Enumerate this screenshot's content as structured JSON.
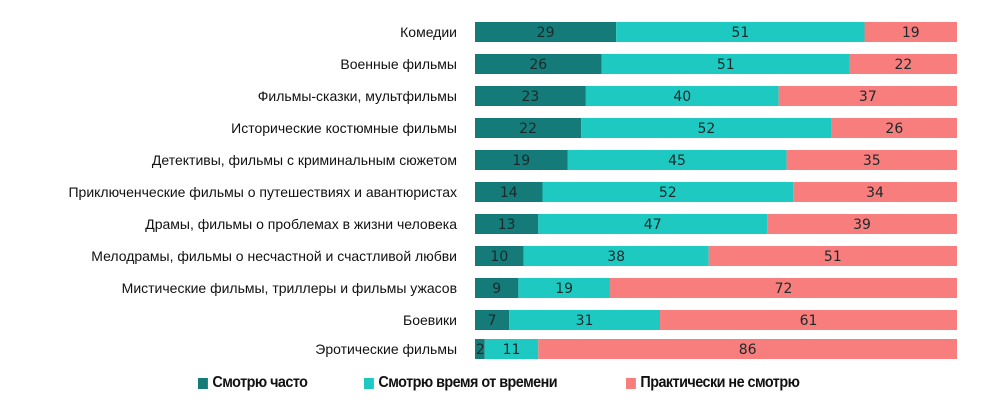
{
  "chart_data": {
    "type": "bar",
    "orientation": "horizontal",
    "stacked": true,
    "categories": [
      "Комедии",
      "Военные фильмы",
      "Фильмы-сказки, мультфильмы",
      "Исторические костюмные фильмы",
      "Детективы, фильмы с криминальным сюжетом",
      "Приключенческие фильмы о путешествиях и авантюристах",
      "Драмы, фильмы о проблемах в жизни человека",
      "Мелодрамы, фильмы о несчастной и счастливой любви",
      "Мистические фильмы, триллеры и фильмы ужасов",
      "Боевики",
      "Эротические фильмы"
    ],
    "series": [
      {
        "name": "Смотрю часто",
        "color": "#147b79",
        "values": [
          29,
          26,
          23,
          22,
          19,
          14,
          13,
          10,
          9,
          7,
          2
        ]
      },
      {
        "name": "Смотрю время от времени",
        "color": "#1ec9c1",
        "values": [
          51,
          51,
          40,
          52,
          45,
          52,
          47,
          38,
          19,
          31,
          11
        ]
      },
      {
        "name": "Практически не смотрю",
        "color": "#f87e7e",
        "values": [
          19,
          22,
          37,
          26,
          35,
          34,
          39,
          51,
          72,
          61,
          86
        ]
      }
    ],
    "legend_position": "bottom",
    "grid": false,
    "data_labels": true
  }
}
